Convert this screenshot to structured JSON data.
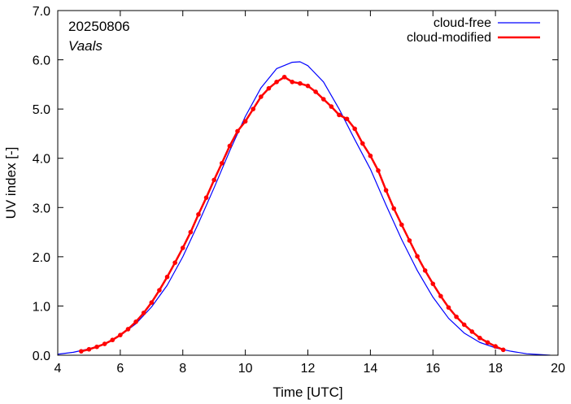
{
  "chart_data": {
    "type": "line",
    "xlabel": "Time  [UTC]",
    "ylabel": "UV index  [-]",
    "xlim": [
      4,
      20
    ],
    "ylim": [
      0,
      7
    ],
    "xticks": [
      4,
      6,
      8,
      10,
      12,
      14,
      16,
      18,
      20
    ],
    "yticks": [
      0,
      1,
      2,
      3,
      4,
      5,
      6,
      7
    ],
    "ytick_labels": [
      "0.0",
      "1.0",
      "2.0",
      "3.0",
      "4.0",
      "5.0",
      "6.0",
      "7.0"
    ],
    "annotations": [
      "20250806",
      "Vaals"
    ],
    "legend_position": "top-right",
    "grid": false,
    "series": [
      {
        "name": "cloud-free",
        "color": "#0000ff",
        "marker": "none",
        "x": [
          4.0,
          4.5,
          5.0,
          5.5,
          6.0,
          6.5,
          7.0,
          7.5,
          8.0,
          8.5,
          9.0,
          9.5,
          10.0,
          10.5,
          11.0,
          11.5,
          11.75,
          12.0,
          12.5,
          13.0,
          13.5,
          14.0,
          14.5,
          15.0,
          15.5,
          16.0,
          16.5,
          17.0,
          17.5,
          18.0,
          18.5,
          19.0,
          19.5,
          19.75
        ],
        "values": [
          0.02,
          0.06,
          0.13,
          0.23,
          0.4,
          0.64,
          0.98,
          1.42,
          2.0,
          2.68,
          3.4,
          4.15,
          4.85,
          5.43,
          5.82,
          5.95,
          5.96,
          5.88,
          5.55,
          5.0,
          4.38,
          3.78,
          3.05,
          2.35,
          1.72,
          1.18,
          0.75,
          0.45,
          0.26,
          0.15,
          0.08,
          0.03,
          0.01,
          0.0
        ]
      },
      {
        "name": "cloud-modified",
        "color": "#ff0000",
        "marker": "dot",
        "x": [
          4.75,
          5.0,
          5.25,
          5.5,
          5.75,
          6.0,
          6.25,
          6.5,
          6.75,
          7.0,
          7.25,
          7.5,
          7.75,
          8.0,
          8.25,
          8.5,
          8.75,
          9.0,
          9.25,
          9.5,
          9.75,
          10.0,
          10.25,
          10.5,
          10.75,
          11.0,
          11.25,
          11.5,
          11.75,
          12.0,
          12.25,
          12.5,
          12.75,
          13.0,
          13.25,
          13.5,
          13.75,
          14.0,
          14.25,
          14.5,
          14.75,
          15.0,
          15.25,
          15.5,
          15.75,
          16.0,
          16.25,
          16.5,
          16.75,
          17.0,
          17.25,
          17.5,
          17.75,
          18.0,
          18.25
        ],
        "values": [
          0.08,
          0.12,
          0.17,
          0.23,
          0.31,
          0.41,
          0.53,
          0.68,
          0.86,
          1.07,
          1.32,
          1.59,
          1.88,
          2.18,
          2.5,
          2.86,
          3.2,
          3.56,
          3.9,
          4.25,
          4.55,
          4.75,
          5.0,
          5.25,
          5.42,
          5.55,
          5.65,
          5.55,
          5.52,
          5.47,
          5.35,
          5.2,
          5.05,
          4.88,
          4.8,
          4.6,
          4.3,
          4.05,
          3.75,
          3.35,
          2.98,
          2.65,
          2.33,
          2.01,
          1.72,
          1.45,
          1.2,
          0.97,
          0.78,
          0.62,
          0.48,
          0.35,
          0.26,
          0.18,
          0.11
        ]
      }
    ]
  }
}
